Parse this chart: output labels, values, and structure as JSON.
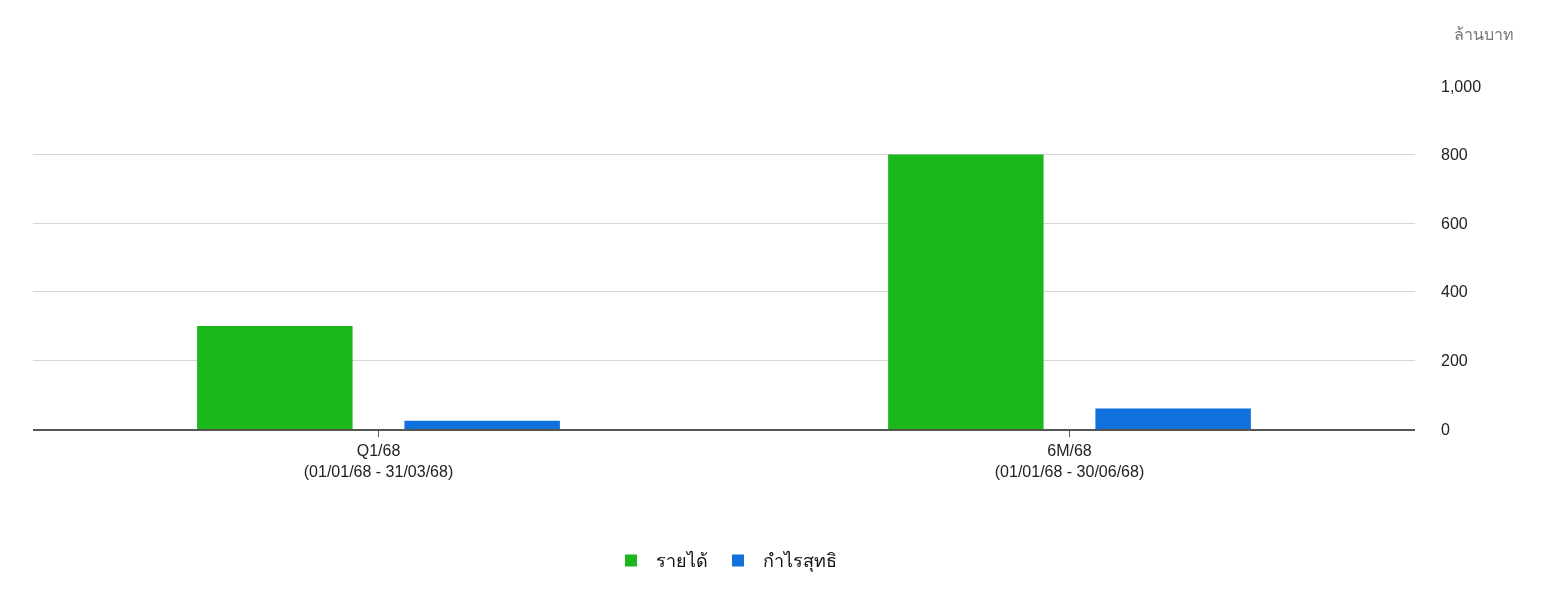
{
  "chart_data": {
    "type": "bar",
    "categories": [
      "Q1/68\n(01/01/68 - 31/03/68)",
      "6M/68\n(01/01/68 - 30/06/68)"
    ],
    "series": [
      {
        "name": "รายได้",
        "color": "#1ab81a",
        "values": [
          300,
          800
        ]
      },
      {
        "name": "กำไรสุทธิ",
        "color": "#1070dc",
        "values": [
          24,
          60
        ]
      }
    ],
    "ylabel": "ล้านบาท",
    "ylim": [
      0,
      1000
    ],
    "yticks": [
      0,
      200,
      400,
      600,
      {
        "value": 800,
        "label": "800"
      },
      {
        "value": 1000,
        "label": "1,000"
      }
    ],
    "grid": "y",
    "legend": "bottom"
  }
}
